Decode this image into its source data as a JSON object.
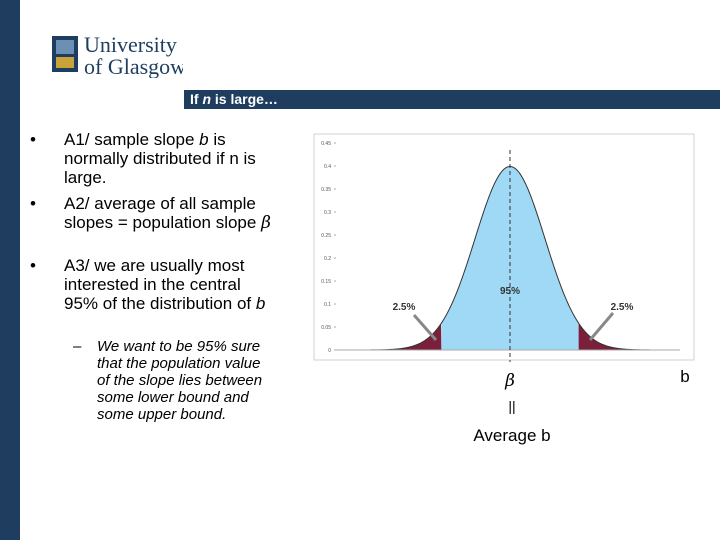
{
  "logo": {
    "line1": "University",
    "line2": "of Glasgow"
  },
  "header": {
    "title": [
      "If ",
      "n",
      " is large…"
    ]
  },
  "bullets": [
    [
      "A1/ sample slope ",
      "b",
      " is normally distributed if n is large."
    ],
    [
      "A2/ average of all sample slopes = population slope ",
      "β"
    ],
    [
      "A3/ we are usually most interested in the central 95% of the distribution of ",
      "b"
    ]
  ],
  "sub_bullet": "We want to be 95% sure that the population value of the slope lies between some lower bound and some upper bound.",
  "chart_data": {
    "type": "area",
    "ylim": [
      0,
      0.45
    ],
    "yticks": [
      0,
      0.05,
      0.1,
      0.15,
      0.2,
      0.25,
      0.3,
      0.35,
      0.4,
      0.45
    ],
    "annotations": {
      "center": "95%",
      "left": "2.5%",
      "right": "2.5%"
    },
    "below": {
      "symbol": "β",
      "equals": "||",
      "label": "Average b"
    },
    "axis_label": "b"
  }
}
